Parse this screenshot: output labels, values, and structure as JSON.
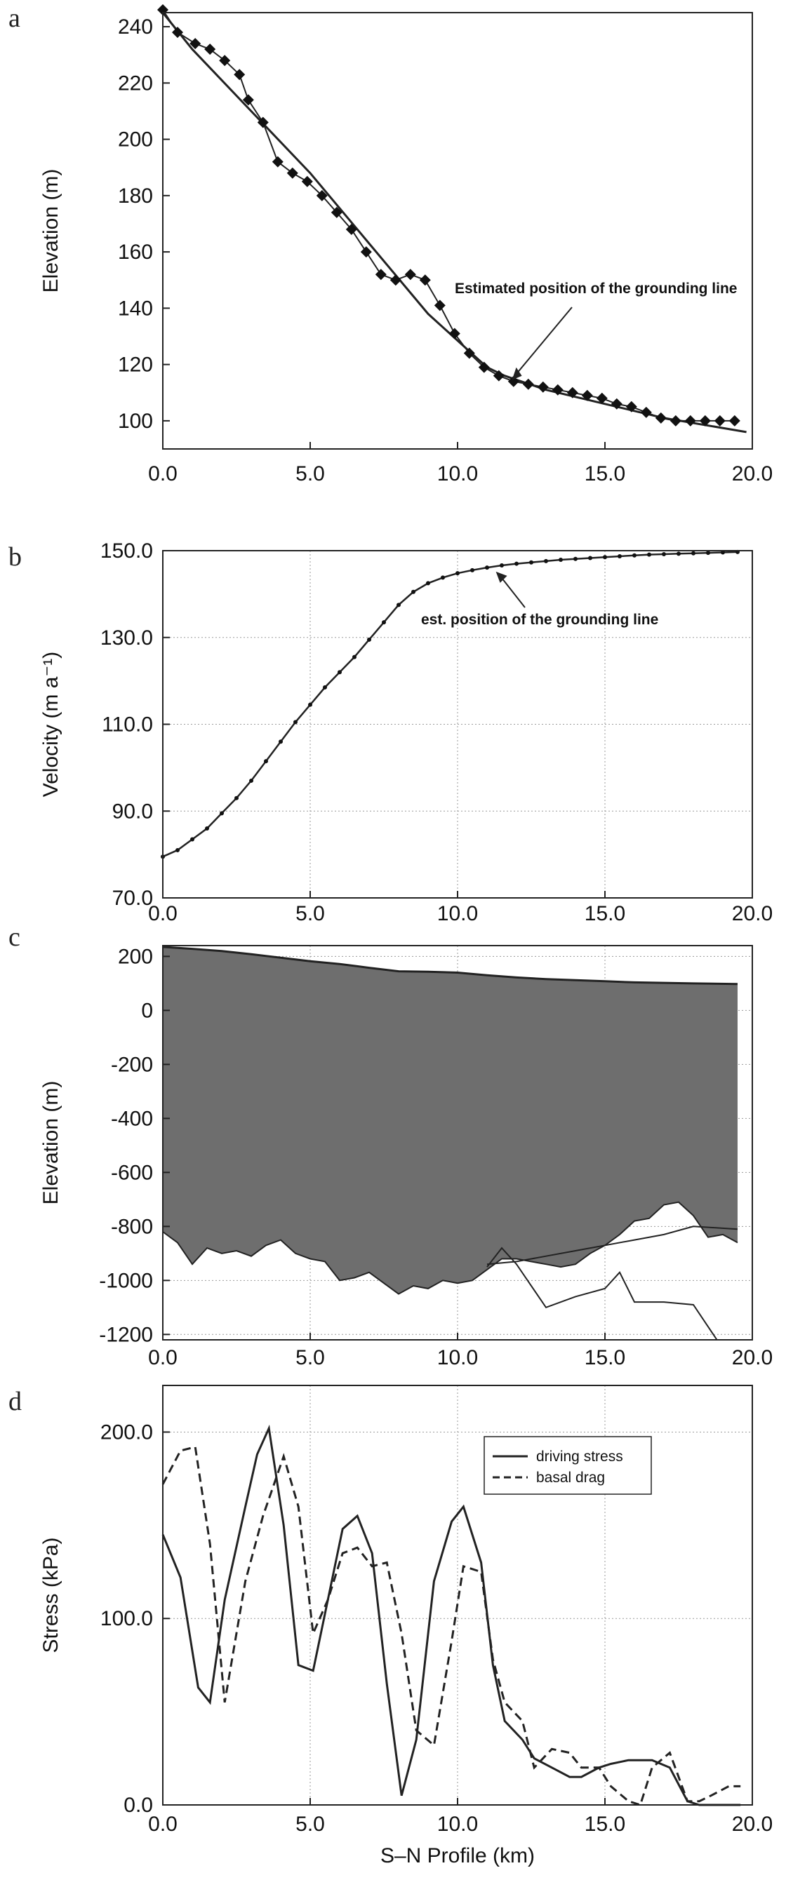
{
  "chart_data": [
    {
      "type": "line",
      "panel": "a",
      "xlabel": "",
      "ylabel": "Elevation (m)",
      "xlim": [
        0,
        20
      ],
      "ylim": [
        90,
        245
      ],
      "xticks": [
        "0.0",
        "5.0",
        "10.0",
        "15.0",
        "20.0"
      ],
      "yticks": [
        "100",
        "120",
        "140",
        "160",
        "180",
        "200",
        "220",
        "240"
      ],
      "grid": false,
      "annotation": "Estimated position of the grounding line",
      "annotation_target": {
        "x": 11.8,
        "y": 114
      },
      "series": [
        {
          "style": "solid-smooth",
          "x": [
            0,
            1,
            3,
            5,
            7,
            9,
            11,
            11.6,
            13,
            15,
            17,
            19.8
          ],
          "y": [
            245,
            232,
            210,
            188,
            163,
            138,
            119,
            116,
            111,
            106,
            101,
            96
          ]
        },
        {
          "style": "diamond-markers",
          "x": [
            0,
            0.5,
            1.1,
            1.6,
            2.1,
            2.6,
            2.9,
            3.4,
            3.9,
            4.4,
            4.9,
            5.4,
            5.9,
            6.4,
            6.9,
            7.4,
            7.9,
            8.4,
            8.9,
            9.4,
            9.9,
            10.4,
            10.9,
            11.4,
            11.9,
            12.4,
            12.9,
            13.4,
            13.9,
            14.4,
            14.9,
            15.4,
            15.9,
            16.4,
            16.9,
            17.4,
            17.9,
            18.4,
            18.9,
            19.4
          ],
          "y": [
            246,
            238,
            234,
            232,
            228,
            223,
            214,
            206,
            192,
            188,
            185,
            180,
            174,
            168,
            160,
            152,
            150,
            152,
            150,
            141,
            131,
            124,
            119,
            116,
            114,
            113,
            112,
            111,
            110,
            109,
            108,
            106,
            105,
            103,
            101,
            100,
            100,
            100,
            100,
            100
          ]
        }
      ]
    },
    {
      "type": "line",
      "panel": "b",
      "xlabel": "",
      "ylabel": "Velocity (m a⁻¹)",
      "xlim": [
        0,
        20
      ],
      "ylim": [
        70,
        150
      ],
      "xticks": [
        "0.0",
        "5.0",
        "10.0",
        "15.0",
        "20.0"
      ],
      "yticks": [
        "70.0",
        "90.0",
        "110.0",
        "130.0",
        "150.0"
      ],
      "grid": true,
      "annotation": "est. position of the grounding line",
      "annotation_target": {
        "x": 11.3,
        "y": 145.5
      },
      "series": [
        {
          "style": "line-with-small-markers",
          "x": [
            0,
            0.5,
            1,
            1.5,
            2,
            2.5,
            3,
            3.5,
            4,
            4.5,
            5,
            5.5,
            6,
            6.5,
            7,
            7.5,
            8,
            8.5,
            9,
            9.5,
            10,
            10.5,
            11,
            11.5,
            12,
            12.5,
            13,
            13.5,
            14,
            14.5,
            15,
            15.5,
            16,
            16.5,
            17,
            17.5,
            18,
            18.5,
            19,
            19.5
          ],
          "y": [
            79.5,
            81,
            83.5,
            86,
            89.5,
            93,
            97,
            101.5,
            106,
            110.5,
            114.5,
            118.5,
            122,
            125.5,
            129.5,
            133.5,
            137.5,
            140.5,
            142.5,
            143.8,
            144.8,
            145.5,
            146.1,
            146.6,
            147,
            147.3,
            147.6,
            147.9,
            148.1,
            148.3,
            148.5,
            148.7,
            148.9,
            149.1,
            149.2,
            149.3,
            149.4,
            149.5,
            149.6,
            149.7
          ]
        }
      ]
    },
    {
      "type": "area",
      "panel": "c",
      "xlabel": "",
      "ylabel": "Elevation (m)",
      "xlim": [
        0,
        20
      ],
      "ylim": [
        -1220,
        240
      ],
      "xticks": [
        "0.0",
        "5.0",
        "10.0",
        "15.0",
        "20.0"
      ],
      "yticks": [
        "200",
        "0",
        "-200",
        "-400",
        "-600",
        "-800",
        "-1000",
        "-1200"
      ],
      "grid": true,
      "fill_color": "#6e6e6e",
      "surface": {
        "x": [
          0,
          1,
          2,
          3,
          4,
          5,
          6,
          7,
          8,
          9,
          10,
          11,
          12,
          13,
          14,
          15,
          16,
          17,
          18,
          19.5
        ],
        "y": [
          235,
          228,
          220,
          208,
          195,
          182,
          172,
          158,
          145,
          143,
          140,
          130,
          122,
          116,
          112,
          108,
          104,
          102,
          100,
          98
        ]
      },
      "bed": {
        "x": [
          0,
          0.5,
          1,
          1.5,
          2,
          2.5,
          3,
          3.5,
          4,
          4.5,
          5,
          5.5,
          6,
          6.5,
          7,
          7.5,
          8,
          8.5,
          9,
          9.5,
          10,
          10.5,
          11,
          11.5,
          12,
          12.5,
          13,
          13.5,
          14,
          14.5,
          15,
          15.5,
          16,
          16.5,
          17,
          17.5,
          18,
          18.5,
          19,
          19.5
        ],
        "y": [
          -820,
          -860,
          -940,
          -880,
          -900,
          -890,
          -910,
          -870,
          -850,
          -900,
          -920,
          -930,
          -1000,
          -990,
          -970,
          -1010,
          -1050,
          -1020,
          -1030,
          -1000,
          -1010,
          -1000,
          -960,
          -920,
          -920,
          -930,
          -940,
          -950,
          -940,
          -900,
          -870,
          -830,
          -780,
          -770,
          -720,
          -710,
          -760,
          -840,
          -830,
          -860
        ]
      },
      "extra_lines": [
        {
          "x": [
            11,
            11.5,
            12,
            13,
            14,
            15,
            15.5,
            16,
            17,
            18,
            18.8
          ],
          "y": [
            -950,
            -880,
            -940,
            -1100,
            -1060,
            -1030,
            -970,
            -1080,
            -1080,
            -1090,
            -1220
          ]
        },
        {
          "x": [
            11,
            12,
            13,
            14,
            15,
            16,
            17,
            18,
            19.5
          ],
          "y": [
            -940,
            -930,
            -910,
            -890,
            -870,
            -850,
            -830,
            -800,
            -810
          ]
        }
      ]
    },
    {
      "type": "line",
      "panel": "d",
      "xlabel": "S–N Profile (km)",
      "ylabel": "Stress (kPa)",
      "xlim": [
        0,
        20
      ],
      "ylim": [
        0,
        225
      ],
      "xticks": [
        "0.0",
        "5.0",
        "10.0",
        "15.0",
        "20.0"
      ],
      "yticks": [
        "0.0",
        "100.0",
        "200.0"
      ],
      "grid": true,
      "legend_position": "top-right",
      "series": [
        {
          "name": "driving stress",
          "style": "solid",
          "x": [
            0,
            0.6,
            1.2,
            1.6,
            2.1,
            2.8,
            3.2,
            3.6,
            4.1,
            4.6,
            5.1,
            5.6,
            6.1,
            6.6,
            7.1,
            7.6,
            8.1,
            8.6,
            9.2,
            9.8,
            10.2,
            10.8,
            11.2,
            11.6,
            12.2,
            12.6,
            13.2,
            13.8,
            14.2,
            14.8,
            15.2,
            15.8,
            16.2,
            16.6,
            17.2,
            17.8,
            18.2,
            18.6,
            19.2,
            19.6
          ],
          "y": [
            145,
            122,
            63,
            55,
            110,
            160,
            188,
            202,
            150,
            75,
            72,
            110,
            148,
            155,
            135,
            65,
            5,
            35,
            120,
            152,
            160,
            130,
            75,
            45,
            35,
            25,
            20,
            15,
            15,
            20,
            22,
            24,
            24,
            24,
            20,
            2,
            0,
            0,
            0,
            0
          ]
        },
        {
          "name": "basal drag",
          "style": "dashed",
          "x": [
            0,
            0.6,
            1.1,
            1.6,
            2.1,
            2.8,
            3.4,
            4.1,
            4.6,
            5.1,
            5.6,
            6.1,
            6.6,
            7.1,
            7.6,
            8.1,
            8.6,
            9.2,
            9.8,
            10.2,
            10.8,
            11.2,
            11.6,
            12.2,
            12.6,
            13.2,
            13.8,
            14.2,
            14.8,
            15.2,
            15.8,
            16.2,
            16.6,
            17.2,
            17.8,
            18.2,
            18.6,
            19.2,
            19.6
          ],
          "y": [
            172,
            190,
            192,
            140,
            55,
            120,
            155,
            187,
            160,
            92,
            110,
            135,
            138,
            128,
            130,
            92,
            40,
            32,
            88,
            128,
            125,
            78,
            55,
            45,
            20,
            30,
            28,
            20,
            20,
            10,
            2,
            0,
            20,
            28,
            2,
            2,
            5,
            10,
            10
          ]
        }
      ]
    }
  ]
}
